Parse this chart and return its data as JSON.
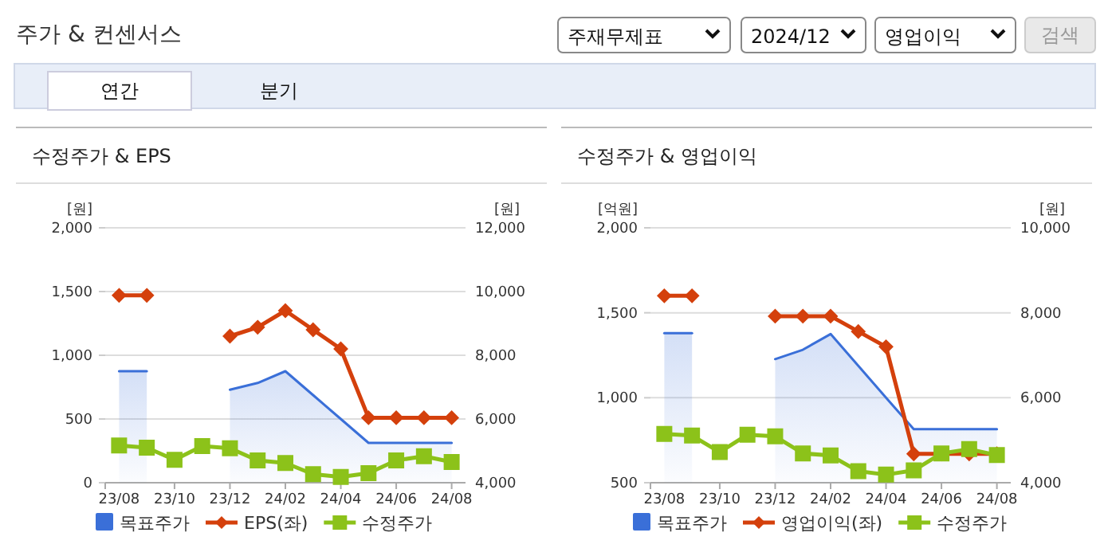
{
  "chart_data": [
    {
      "type": "other",
      "title": "주가 & 컨센서스",
      "annotations": [
        "주재무제표",
        "2024/12",
        "영업이익",
        "검색",
        "연간",
        "분기"
      ]
    },
    {
      "type": "line",
      "title": "수정주가 & EPS",
      "ylabel": "[원]",
      "y2label": "[원]",
      "categories": [
        "23/08",
        null,
        "23/10",
        null,
        "23/12",
        null,
        "24/02",
        null,
        "24/04",
        null,
        "24/06",
        null,
        "24/08"
      ],
      "ylim": [
        0,
        2000
      ],
      "yticks": [
        {
          "value": 0,
          "label": "0"
        },
        {
          "value": 500,
          "label": "500"
        },
        {
          "value": 1000,
          "label": "1,000"
        },
        {
          "value": 1500,
          "label": "1,500"
        },
        {
          "value": 2000,
          "label": "2,000"
        }
      ],
      "y2lim": [
        4000,
        12000
      ],
      "y2ticks": [
        {
          "value": 4000,
          "label": "4,000"
        },
        {
          "value": 6000,
          "label": "6,000"
        },
        {
          "value": 8000,
          "label": "8,000"
        },
        {
          "value": 10000,
          "label": "10,000"
        },
        {
          "value": 12000,
          "label": "12,000"
        }
      ],
      "grid": "y",
      "legend": "bottom",
      "series": [
        {
          "name": "목표주가",
          "type": "area",
          "axis": "y2",
          "color": "#3a6fd8",
          "marker": "none",
          "values": [
            7500,
            7500,
            null,
            null,
            6920,
            7130,
            7500,
            6750,
            6000,
            5250,
            5250,
            5250,
            5250
          ]
        },
        {
          "name": "EPS(좌)",
          "type": "line",
          "color": "#d4400c",
          "marker": "diamond",
          "values": [
            1470,
            1470,
            null,
            null,
            1150,
            1220,
            1350,
            1200,
            1050,
            510,
            510,
            510,
            510
          ]
        },
        {
          "name": "수정주가",
          "type": "line",
          "axis": "y2",
          "color": "#8cc21a",
          "marker": "square",
          "values": [
            5170,
            5100,
            4720,
            5150,
            5080,
            4700,
            4620,
            4270,
            4180,
            4300,
            4700,
            4830,
            4650
          ]
        }
      ]
    },
    {
      "type": "line",
      "title": "수정주가 & 영업이익",
      "ylabel": "[억원]",
      "y2label": "[원]",
      "categories": [
        "23/08",
        null,
        "23/10",
        null,
        "23/12",
        null,
        "24/02",
        null,
        "24/04",
        null,
        "24/06",
        null,
        "24/08"
      ],
      "ylim": [
        500,
        2000
      ],
      "yticks": [
        {
          "value": 500,
          "label": "500"
        },
        {
          "value": 1000,
          "label": "1,000"
        },
        {
          "value": 1500,
          "label": "1,500"
        },
        {
          "value": 2000,
          "label": "2,000"
        }
      ],
      "y2lim": [
        4000,
        10000
      ],
      "y2ticks": [
        {
          "value": 4000,
          "label": "4,000"
        },
        {
          "value": 6000,
          "label": "6,000"
        },
        {
          "value": 8000,
          "label": "8,000"
        },
        {
          "value": 10000,
          "label": "10,000"
        }
      ],
      "grid": "y",
      "legend": "bottom",
      "series": [
        {
          "name": "목표주가",
          "type": "area",
          "axis": "y2",
          "color": "#3a6fd8",
          "marker": "none",
          "values": [
            7520,
            7520,
            null,
            null,
            6910,
            7130,
            7500,
            6750,
            6000,
            5260,
            5260,
            5260,
            5260
          ]
        },
        {
          "name": "영업이익(좌)",
          "type": "line",
          "color": "#d4400c",
          "marker": "diamond",
          "values": [
            1600,
            1600,
            null,
            null,
            1480,
            1480,
            1480,
            1390,
            1300,
            670,
            670,
            670,
            670
          ]
        },
        {
          "name": "수정주가",
          "type": "line",
          "axis": "y2",
          "color": "#8cc21a",
          "marker": "square",
          "values": [
            5150,
            5110,
            4720,
            5130,
            5090,
            4690,
            4640,
            4270,
            4190,
            4290,
            4690,
            4790,
            4650
          ]
        }
      ]
    }
  ]
}
